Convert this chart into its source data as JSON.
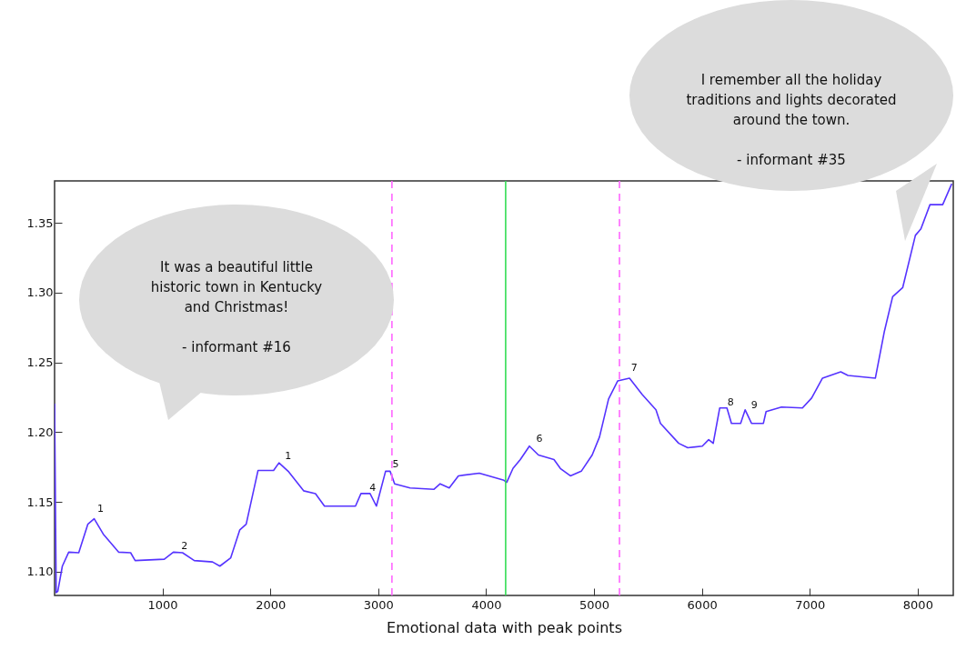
{
  "chart_data": {
    "type": "line",
    "xlabel": "Emotional data with peak points",
    "xlim": [
      0,
      8330
    ],
    "ylim": [
      1.083,
      1.38
    ],
    "xticks": [
      1000,
      2000,
      3000,
      4000,
      5000,
      6000,
      7000,
      8000
    ],
    "yticks": [
      {
        "value": 1.1,
        "label": "1.10"
      },
      1.15,
      {
        "value": 1.2,
        "label": "1.20"
      },
      1.25,
      {
        "value": 1.3,
        "label": "1.30"
      },
      1.35
    ],
    "marker": "none",
    "line_style": "solid",
    "series": [
      {
        "color": "#5533ff",
        "x": [
          0,
          15,
          30,
          72,
          131,
          224,
          308,
          367,
          451,
          595,
          705,
          747,
          1017,
          1101,
          1186,
          1295,
          1464,
          1532,
          1633,
          1717,
          1776,
          1886,
          2030,
          2080,
          2165,
          2308,
          2418,
          2502,
          2789,
          2840,
          2924,
          2983,
          3068,
          3110,
          3152,
          3295,
          3515,
          3574,
          3658,
          3743,
          3937,
          4165,
          4191,
          4249,
          4317,
          4401,
          4485,
          4629,
          4688,
          4781,
          4882,
          4983,
          5051,
          5135,
          5219,
          5329,
          5447,
          5574,
          5616,
          5785,
          5869,
          6004,
          6063,
          6105,
          6165,
          6232,
          6274,
          6359,
          6401,
          6460,
          6570,
          6595,
          6738,
          6932,
          7017,
          7118,
          7287,
          7354,
          7608,
          7692,
          7768,
          7861,
          7979,
          8030,
          8114,
          8232,
          8316
        ],
        "values": [
          1.2205,
          1.085,
          1.086,
          1.104,
          1.114,
          1.1136,
          1.134,
          1.138,
          1.127,
          1.114,
          1.1136,
          1.108,
          1.109,
          1.114,
          1.1136,
          1.108,
          1.107,
          1.104,
          1.11,
          1.13,
          1.134,
          1.1726,
          1.1726,
          1.178,
          1.172,
          1.158,
          1.156,
          1.147,
          1.147,
          1.156,
          1.156,
          1.147,
          1.172,
          1.172,
          1.163,
          1.16,
          1.159,
          1.163,
          1.16,
          1.1687,
          1.1706,
          1.1655,
          1.164,
          1.174,
          1.1804,
          1.19,
          1.1836,
          1.1804,
          1.174,
          1.1687,
          1.172,
          1.1836,
          1.1966,
          1.2238,
          1.2367,
          1.2387,
          1.227,
          1.216,
          1.2063,
          1.192,
          1.1888,
          1.19,
          1.1946,
          1.192,
          1.2173,
          1.2173,
          1.2063,
          1.2063,
          1.216,
          1.2063,
          1.2063,
          1.2147,
          1.218,
          1.2173,
          1.2244,
          1.2387,
          1.2432,
          1.2406,
          1.2387,
          1.2724,
          1.297,
          1.3035,
          1.341,
          1.3456,
          1.363,
          1.363,
          1.378
        ]
      }
    ],
    "ref_lines": [
      {
        "axis": "x",
        "value": 3127,
        "color": "#ff66ff",
        "line_style": "dashed"
      },
      {
        "axis": "x",
        "value": 4181,
        "color": "#33dd55",
        "line_style": "solid"
      },
      {
        "axis": "x",
        "value": 5236,
        "color": "#ff66ff",
        "line_style": "dashed"
      }
    ],
    "annotations": [
      "It was a beautiful little historic town in Kentucky and Christmas!",
      "- informant #16",
      "I remember all the holiday traditions and lights decorated around the town.",
      "- informant #35",
      {
        "text": "1",
        "x": 392,
        "y": 1.139
      },
      {
        "text": "2",
        "x": 1170,
        "y": 1.112
      },
      {
        "text": "1",
        "x": 2130,
        "y": 1.177
      },
      {
        "text": "4",
        "x": 2916,
        "y": 1.154
      },
      {
        "text": "5",
        "x": 3127,
        "y": 1.171
      },
      {
        "text": "6",
        "x": 4460,
        "y": 1.189
      },
      {
        "text": "7",
        "x": 5338,
        "y": 1.24
      },
      {
        "text": "8",
        "x": 6232,
        "y": 1.215
      },
      {
        "text": "9",
        "x": 6451,
        "y": 1.213
      }
    ]
  }
}
